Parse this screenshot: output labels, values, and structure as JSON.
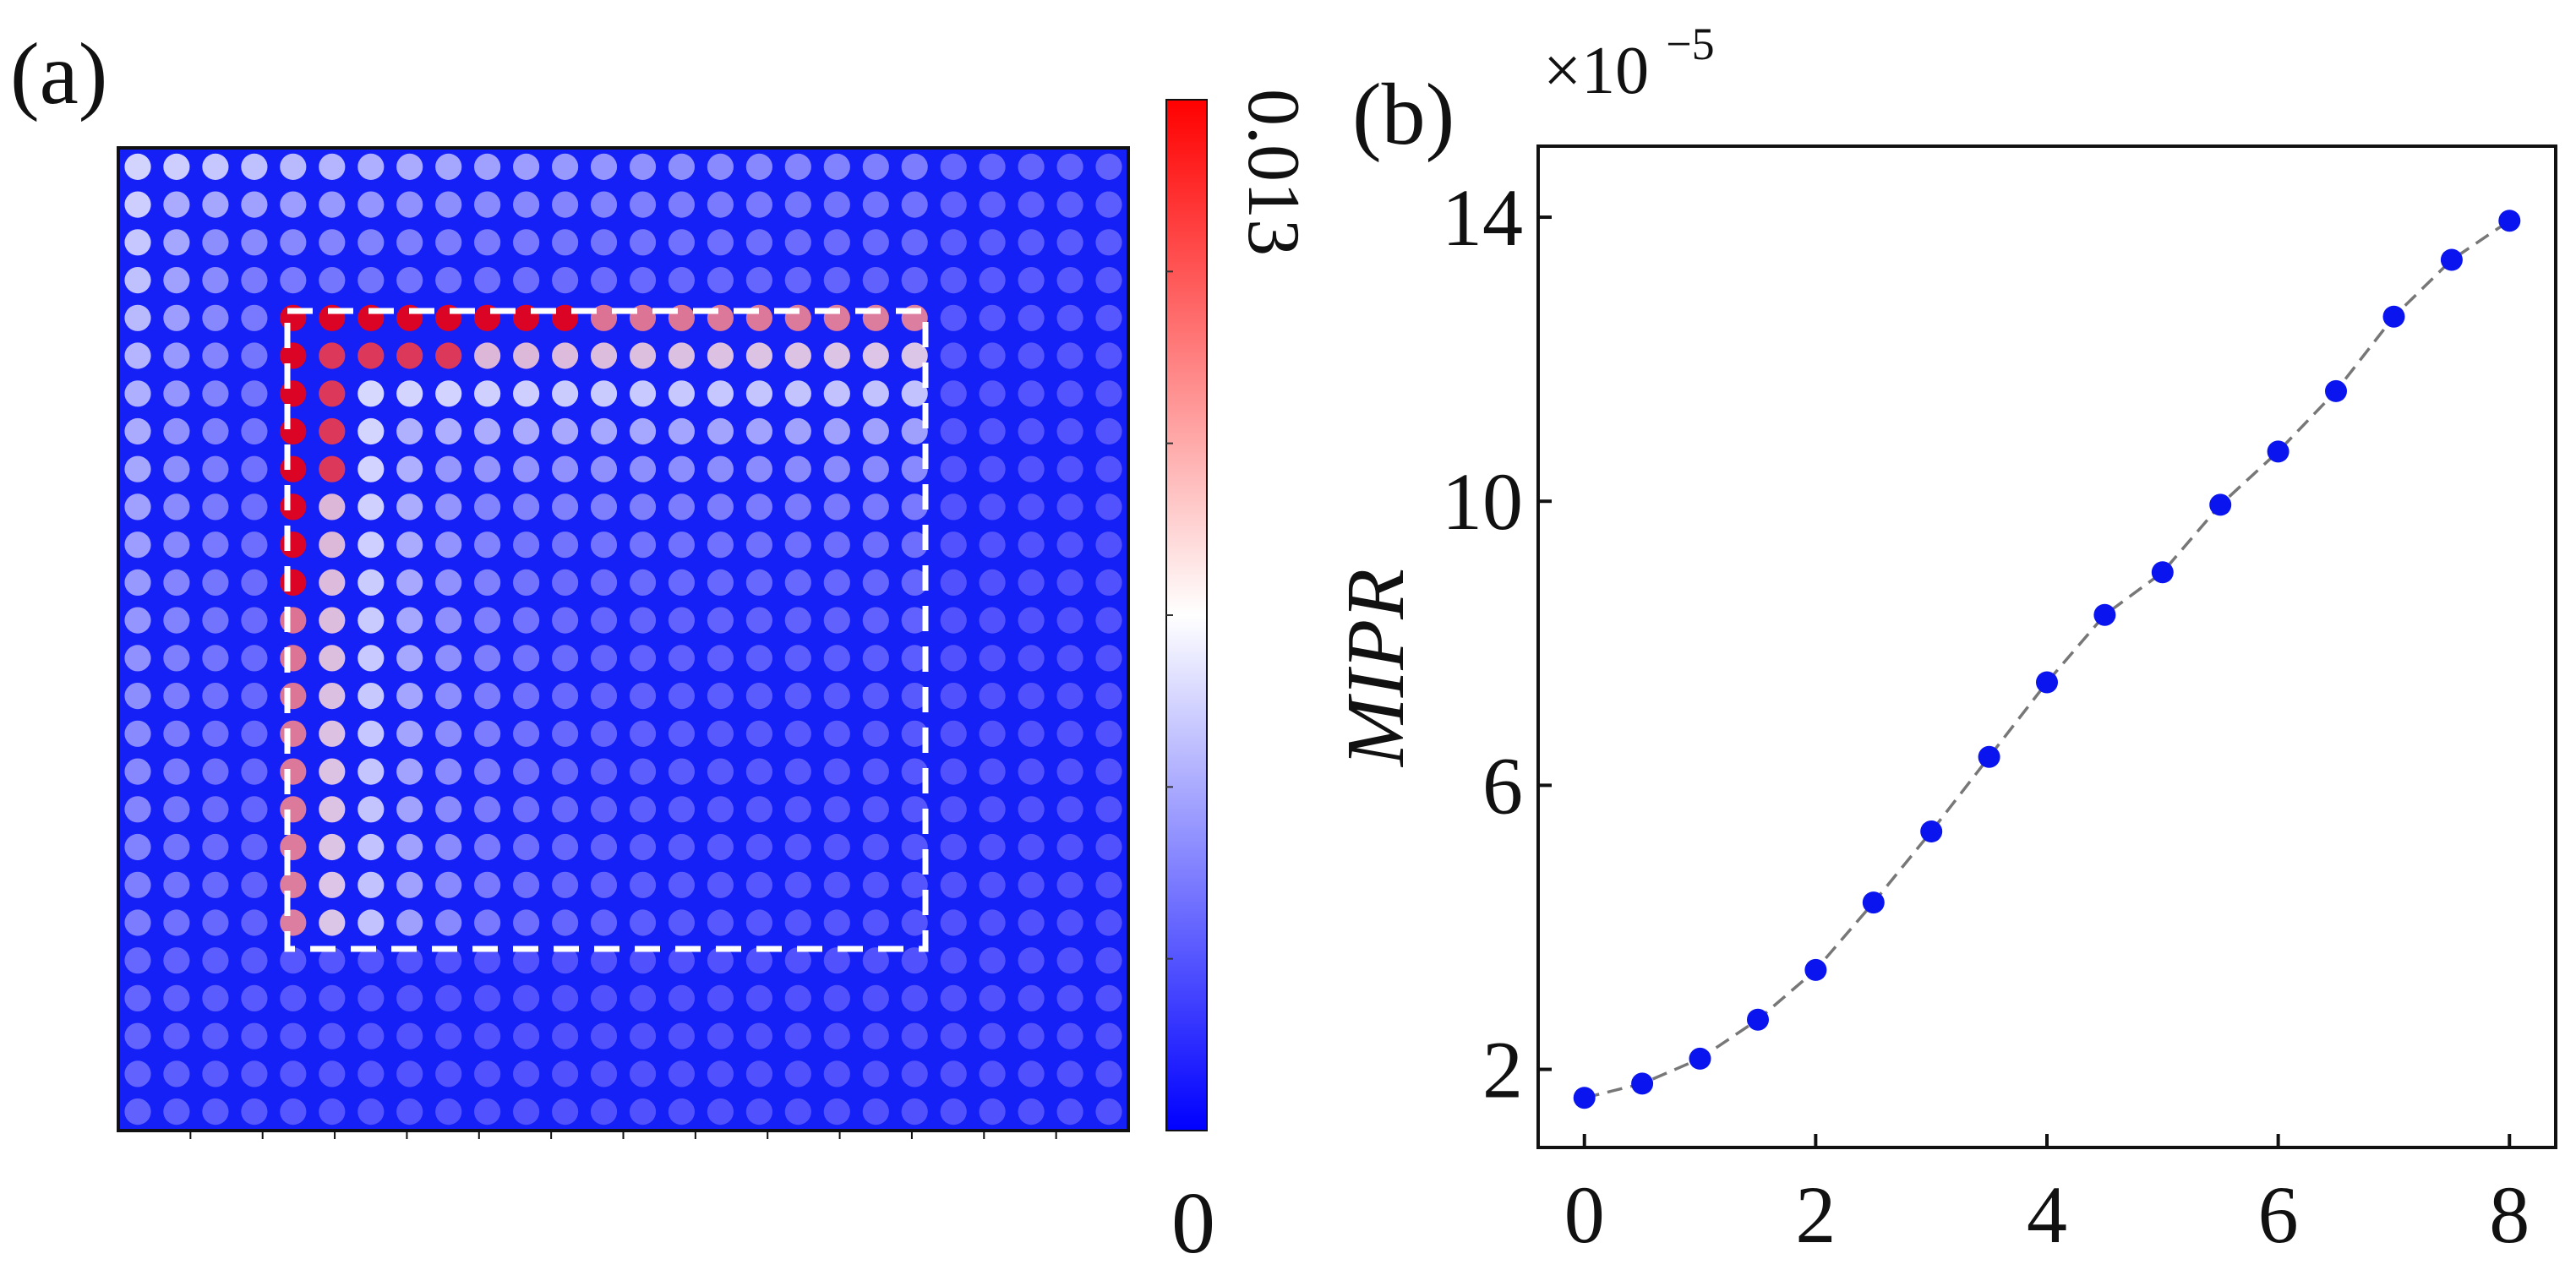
{
  "panel_a": {
    "label": "(a)",
    "colorbar": {
      "max_label": "0.013",
      "min_label": "0",
      "min_value": 0,
      "max_value": 0.013,
      "colors": {
        "low": "#0000ff",
        "mid": "#ffffff",
        "high": "#ff0000"
      }
    },
    "heatmap": {
      "type": "heatmap",
      "grid_size": 26,
      "description_region": "dashed square region",
      "region_cells": {
        "row_start": 4,
        "row_end": 20,
        "col_start": 4,
        "col_end": 20
      }
    }
  },
  "panel_b": {
    "label": "(b)",
    "multiplier": "×10",
    "multiplier_exp": "−5",
    "ylabel": "MIPR",
    "xlabel": "",
    "colors": {
      "point": "#0a14ee",
      "line": "#777777"
    }
  },
  "chart_data": [
    {
      "type": "heatmap",
      "title": "(a)",
      "value_range": [
        0,
        0.013
      ],
      "colorbar_labels": [
        "0",
        "0.013"
      ]
    },
    {
      "type": "scatter",
      "title": "(b)",
      "ylabel": "MIPR",
      "xlabel": "",
      "y_multiplier": "×10^-5",
      "xlim": [
        -0.4,
        8.4
      ],
      "ylim": [
        0.9,
        15.0
      ],
      "xticks": [
        0,
        2,
        4,
        6,
        8
      ],
      "yticks": [
        2,
        6,
        10,
        14
      ],
      "x": [
        0,
        0.5,
        1,
        1.5,
        2,
        2.5,
        3,
        3.5,
        4,
        4.5,
        5,
        5.5,
        6,
        6.5,
        7,
        7.5,
        8
      ],
      "y": [
        1.6,
        1.8,
        2.15,
        2.7,
        3.4,
        4.35,
        5.35,
        6.4,
        7.45,
        8.4,
        9.0,
        9.95,
        10.7,
        11.55,
        12.6,
        13.4,
        13.95
      ]
    }
  ]
}
